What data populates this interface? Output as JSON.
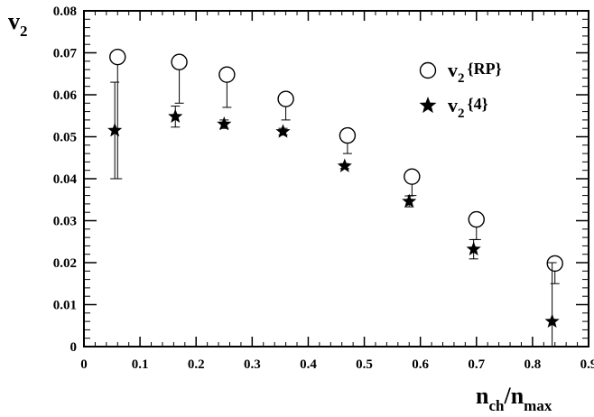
{
  "chart_data": {
    "type": "scatter",
    "xlim": [
      0,
      0.9
    ],
    "ylim": [
      0,
      0.08
    ],
    "x_ticks": [
      "0",
      "0.1",
      "0.2",
      "0.3",
      "0.4",
      "0.5",
      "0.6",
      "0.7",
      "0.8",
      "0.9"
    ],
    "y_ticks": [
      "0",
      "0.01",
      "0.02",
      "0.03",
      "0.04",
      "0.05",
      "0.06",
      "0.07",
      "0.08"
    ],
    "xlabel": {
      "main": "n",
      "sub1": "ch",
      "sep": "/n",
      "sub2": "max"
    },
    "ylabel": {
      "main": "v",
      "sub": "2"
    },
    "grid": false,
    "legend_position": "top-right",
    "series": [
      {
        "name": "v2{RP}",
        "legend": {
          "main": "v",
          "sub": "2",
          "suffix": "{RP}"
        },
        "marker": "open-circle",
        "points": [
          {
            "x": 0.06,
            "y": 0.069,
            "err_low": 0.029,
            "err_high": 0
          },
          {
            "x": 0.17,
            "y": 0.0678,
            "err_low": 0.0098,
            "err_high": 0
          },
          {
            "x": 0.255,
            "y": 0.0648,
            "err_low": 0.0078,
            "err_high": 0
          },
          {
            "x": 0.36,
            "y": 0.059,
            "err_low": 0.005,
            "err_high": 0
          },
          {
            "x": 0.47,
            "y": 0.0503,
            "err_low": 0.0043,
            "err_high": 0
          },
          {
            "x": 0.585,
            "y": 0.0405,
            "err_low": 0.0045,
            "err_high": 0
          },
          {
            "x": 0.7,
            "y": 0.0303,
            "err_low": 0.0048,
            "err_high": 0
          },
          {
            "x": 0.84,
            "y": 0.0198,
            "err_low": 0.0048,
            "err_high": 0
          }
        ]
      },
      {
        "name": "v2{4}",
        "legend": {
          "main": "v",
          "sub": "2",
          "suffix": "{4}"
        },
        "marker": "filled-star",
        "points": [
          {
            "x": 0.055,
            "y": 0.0515,
            "err_low": 0.0115,
            "err_high": 0.0115
          },
          {
            "x": 0.163,
            "y": 0.0548,
            "err_low": 0.0025,
            "err_high": 0.0025
          },
          {
            "x": 0.25,
            "y": 0.053,
            "err_low": 0.001,
            "err_high": 0.001
          },
          {
            "x": 0.355,
            "y": 0.0512,
            "err_low": 0.0008,
            "err_high": 0.0008
          },
          {
            "x": 0.465,
            "y": 0.043,
            "err_low": 0.0006,
            "err_high": 0.0006
          },
          {
            "x": 0.58,
            "y": 0.0346,
            "err_low": 0.0013,
            "err_high": 0.0013
          },
          {
            "x": 0.695,
            "y": 0.0232,
            "err_low": 0.0023,
            "err_high": 0.0023
          },
          {
            "x": 0.835,
            "y": 0.006,
            "err_low": 0.006,
            "err_high": 0.014
          }
        ]
      }
    ]
  }
}
